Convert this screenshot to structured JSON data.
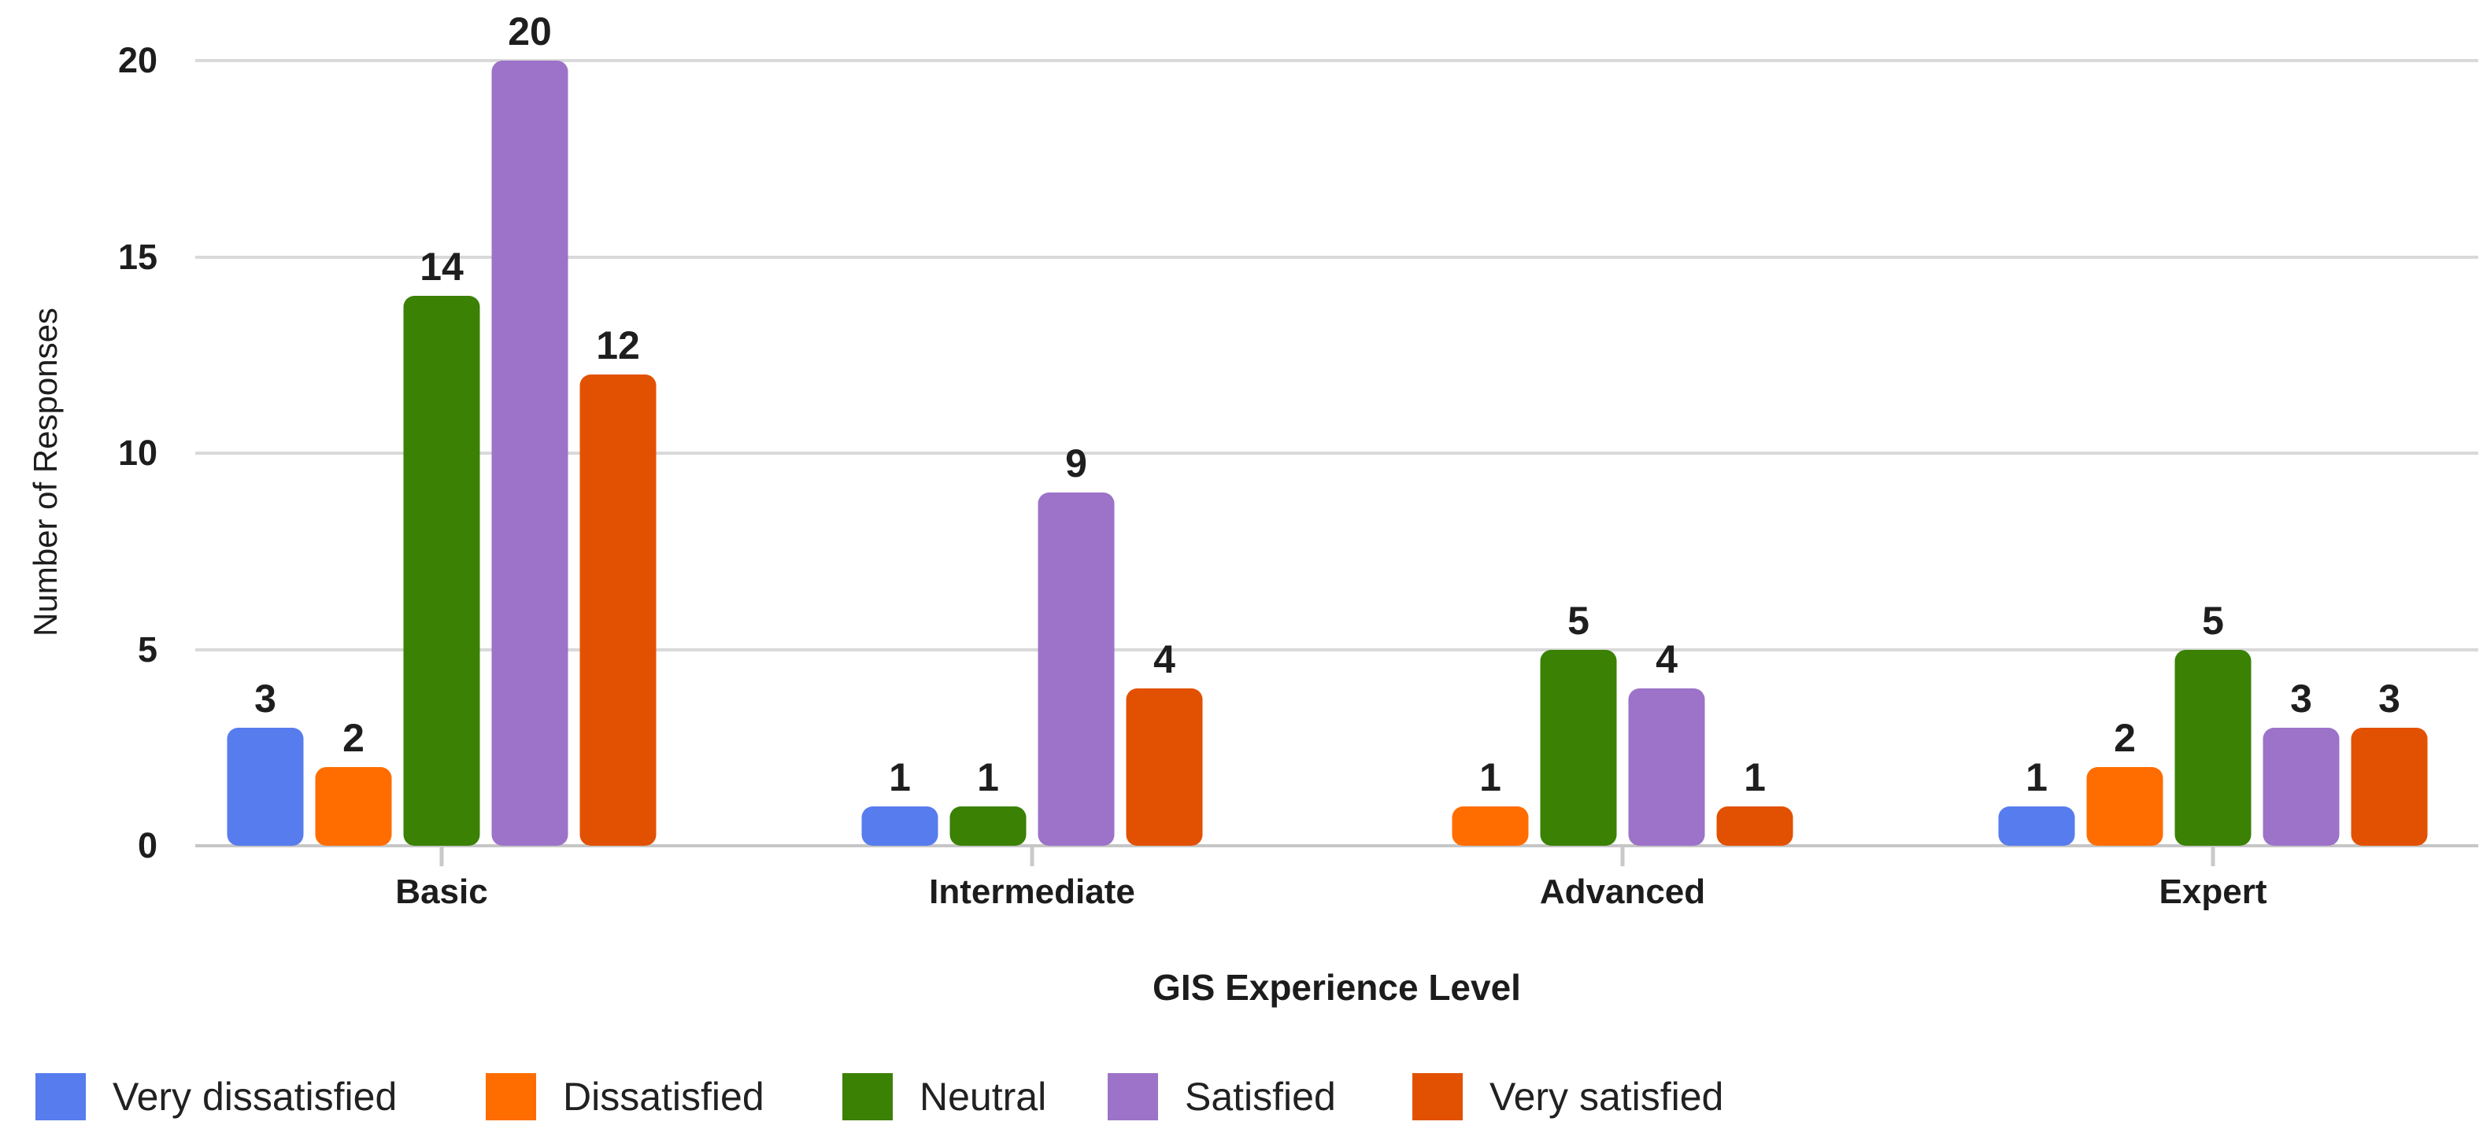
{
  "chart_data": {
    "type": "bar",
    "title": "",
    "xlabel": "GIS Experience Level",
    "ylabel": "Number of Responses",
    "categories": [
      "Basic",
      "Intermediate",
      "Advanced",
      "Expert"
    ],
    "series": [
      {
        "name": "Very dissatisfied",
        "color": "#577CEE",
        "values": [
          3,
          1,
          0,
          1
        ]
      },
      {
        "name": "Dissatisfied",
        "color": "#FF6D00",
        "values": [
          2,
          0,
          1,
          2
        ]
      },
      {
        "name": "Neutral",
        "color": "#3A8104",
        "values": [
          14,
          1,
          5,
          5
        ]
      },
      {
        "name": "Satisfied",
        "color": "#9C73C8",
        "values": [
          20,
          9,
          4,
          3
        ]
      },
      {
        "name": "Very satisfied",
        "color": "#E25102",
        "values": [
          12,
          4,
          1,
          3
        ]
      }
    ],
    "ylim": [
      0,
      20
    ],
    "yticks": [
      0,
      5,
      10,
      15,
      20
    ],
    "grid": true,
    "value_labels": true,
    "hide_zero_bars": true,
    "legend_position": "bottom-left",
    "axis_colors": {
      "gridline": "#D9D9D9",
      "baseline": "#C6C6C6",
      "tick_mark": "#C9C9C9",
      "text": "#1D1D1D"
    }
  }
}
